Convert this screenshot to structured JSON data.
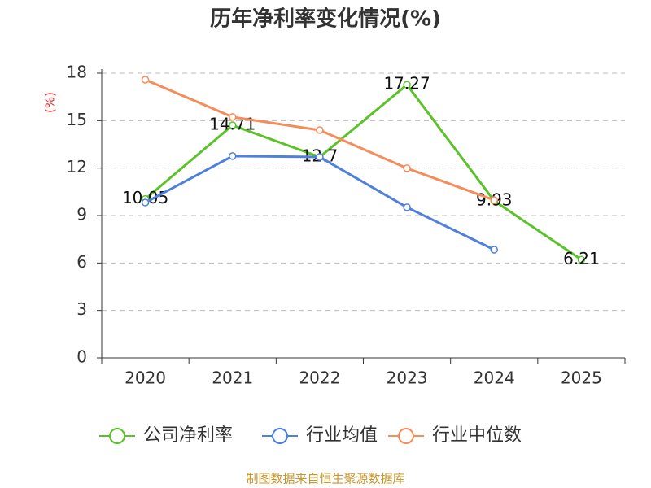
{
  "chart_data": {
    "type": "line",
    "title": "历年净利率变化情况(%)",
    "y_label": "(%)",
    "categories": [
      "2020",
      "2021",
      "2022",
      "2023",
      "2024",
      "2025"
    ],
    "series": [
      {
        "name": "公司净利率",
        "color": "#5bc22a",
        "values": [
          10.05,
          14.71,
          12.7,
          17.27,
          9.93,
          6.21
        ],
        "value_labels": true
      },
      {
        "name": "行业均值",
        "color": "#4f80dc",
        "values": [
          9.82,
          12.76,
          12.7,
          9.52,
          6.84,
          null
        ]
      },
      {
        "name": "行业中位数",
        "color": "#f58d5a",
        "values": [
          17.59,
          15.23,
          14.4,
          11.99,
          9.98,
          null
        ]
      }
    ],
    "ylim": [
      0,
      18
    ],
    "yticks": [
      0,
      3,
      6,
      9,
      12,
      15,
      18
    ],
    "grid": true,
    "source": "制图数据来自恒生聚源数据库"
  }
}
